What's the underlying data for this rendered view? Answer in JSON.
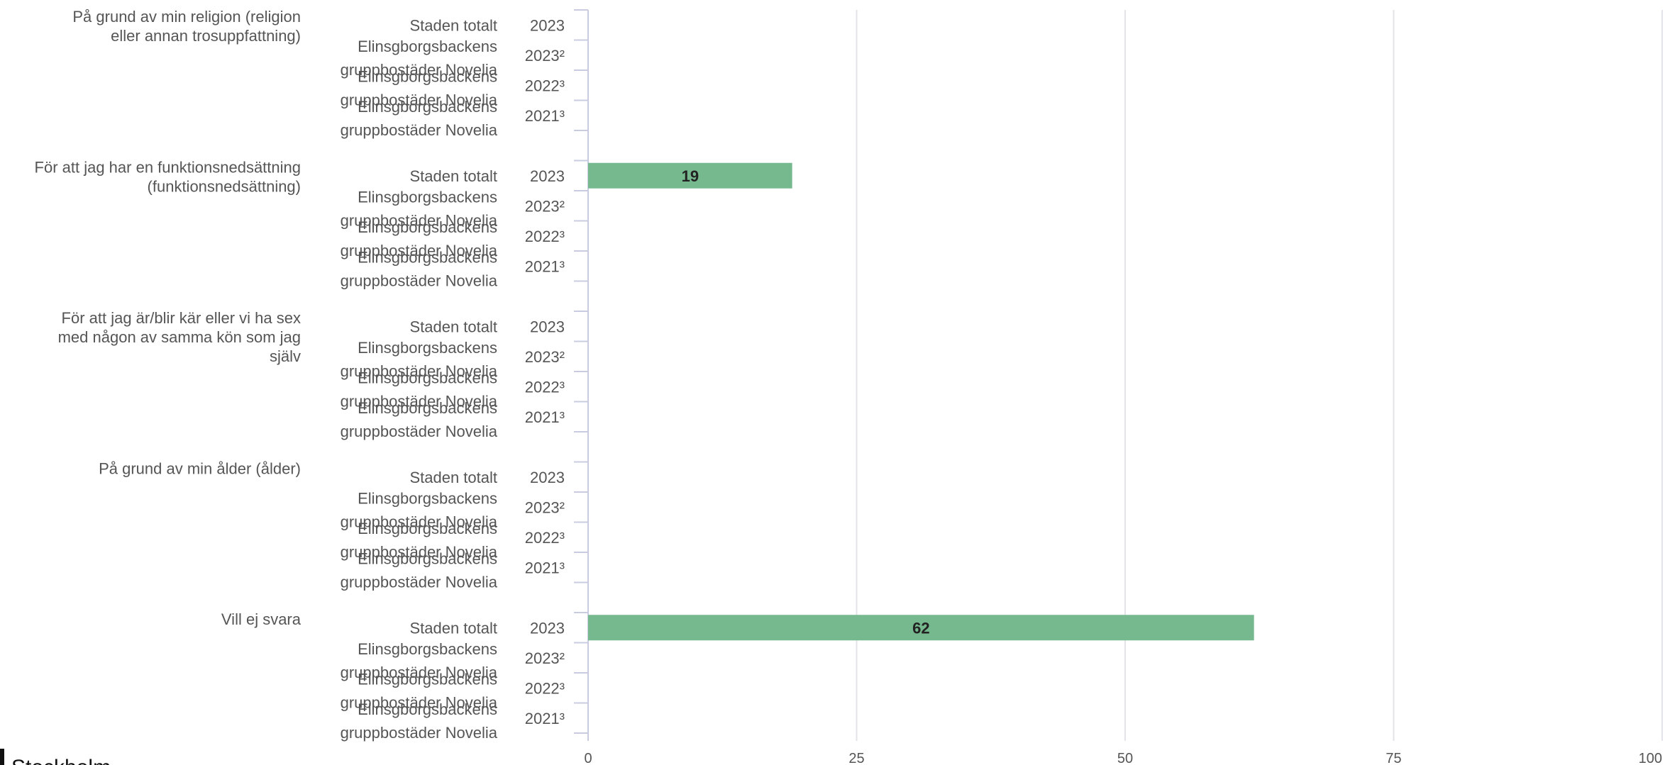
{
  "chart_data": {
    "type": "bar",
    "orientation": "horizontal",
    "xlim": [
      0,
      100
    ],
    "x_ticks": [
      0,
      25,
      50,
      75,
      100
    ],
    "grid": true,
    "bar_color": "#77b98f",
    "grid_color": "#e3e3ea",
    "axis_color": "#c9cce0",
    "series_rows": [
      {
        "organisation": "Staden totalt",
        "year": "2023"
      },
      {
        "organisation": "Elinsgborgsbackens gruppbostäder Novelia",
        "year": "2023²"
      },
      {
        "organisation": "Elinsgborgsbackens gruppbostäder Novelia",
        "year": "2022³"
      },
      {
        "organisation": "Elinsgborgsbackens gruppbostäder Novelia",
        "year": "2021³"
      }
    ],
    "categories": [
      {
        "label": "På grund av min religion (religion eller annan trosuppfattning)",
        "label_lines": [
          "På grund av min religion (religion",
          "eller annan trosuppfattning)"
        ],
        "values": [
          null,
          null,
          null,
          null
        ]
      },
      {
        "label": "För att jag har en funktionsnedsättning (funktionsnedsättning)",
        "label_lines": [
          "För att jag har en funktionsnedsättning",
          "(funktionsnedsättning)"
        ],
        "values": [
          19,
          null,
          null,
          null
        ]
      },
      {
        "label": "För att jag är/blir kär eller vi ha sex med någon av samma kön som jag själv",
        "label_lines": [
          "För att jag är/blir kär eller vi ha sex",
          "med någon av samma kön som jag",
          "själv"
        ],
        "values": [
          null,
          null,
          null,
          null
        ]
      },
      {
        "label": "På grund av min ålder (ålder)",
        "label_lines": [
          "På grund av min ålder (ålder)"
        ],
        "values": [
          null,
          null,
          null,
          null
        ]
      },
      {
        "label": "Vill ej svara",
        "label_lines": [
          "Vill ej svara"
        ],
        "values": [
          62,
          null,
          null,
          null
        ]
      }
    ]
  },
  "logo": {
    "text": "Stockholm"
  }
}
